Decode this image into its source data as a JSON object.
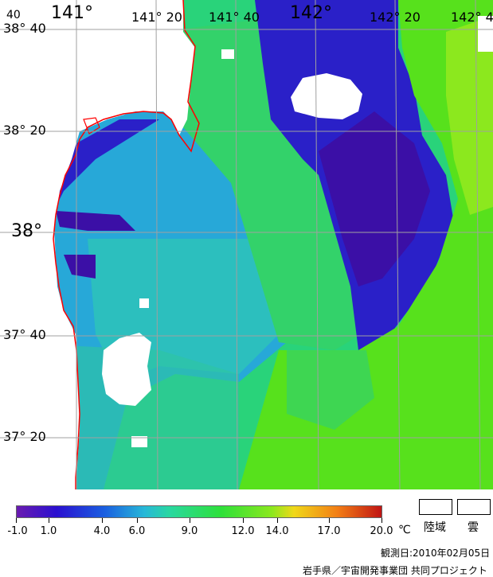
{
  "map": {
    "lat_labels": [
      "38° 40",
      "38° 20",
      "38°",
      "37° 40",
      "37° 20"
    ],
    "lon_labels": [
      "141°",
      "141° 20",
      "141° 40",
      "142°",
      "142° 20",
      "142° 4"
    ],
    "corner_label": "40",
    "colors": {
      "land": "#ffffff",
      "cloud": "#ffffff",
      "coast": "#ff0000",
      "grid": "#a0a0a0"
    }
  },
  "legend": {
    "ticks": [
      "-1.0",
      "1.0",
      "4.0",
      "6.0",
      "9.0",
      "12.0",
      "14.0",
      "17.0",
      "20.0"
    ],
    "unit": "℃",
    "land_label": "陸域",
    "cloud_label": "雲"
  },
  "footer": {
    "observation_date": "観測日:2010年02月05日",
    "credit": "岩手県／宇宙開発事業団 共同プロジェクト"
  }
}
